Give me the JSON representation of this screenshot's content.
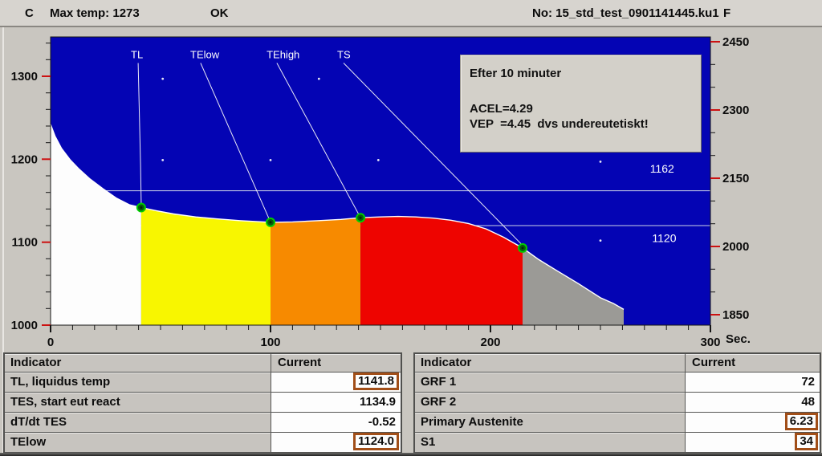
{
  "title_bar": {
    "unit_c": "C",
    "max_temp": "Max temp: 1273",
    "status": "OK",
    "file_no": "No: 15_std_test_0901141445.ku1",
    "unit_f": "F"
  },
  "info_box": {
    "line1": "Efter 10 minuter",
    "line2": "ACEL=4.29",
    "line3": "VEP  =4.45  dvs undereutetiskt!"
  },
  "chart_data": {
    "type": "area",
    "x_axis": {
      "unit": "Sec.",
      "min": 0,
      "max": 300,
      "major_ticks": [
        0,
        100,
        200,
        300
      ],
      "minor_step": 10
    },
    "y_left": {
      "unit": "C",
      "min": 1000,
      "max": 1340,
      "major_ticks": [
        1000,
        1100,
        1200,
        1300
      ],
      "minor_step": 20
    },
    "y_right": {
      "unit": "F",
      "min": 1850,
      "max": 2450,
      "major_ticks": [
        1850,
        2000,
        2150,
        2300,
        2450
      ],
      "minor_step": 50
    },
    "baseline": 1000,
    "curve": [
      [
        0,
        1242
      ],
      [
        2,
        1228
      ],
      [
        5,
        1213
      ],
      [
        9,
        1199
      ],
      [
        13,
        1188
      ],
      [
        18,
        1176
      ],
      [
        24,
        1164
      ],
      [
        30,
        1153
      ],
      [
        36,
        1145
      ],
      [
        41.2,
        1141.8
      ],
      [
        48,
        1138
      ],
      [
        56,
        1134
      ],
      [
        66,
        1130.5
      ],
      [
        76,
        1128
      ],
      [
        86,
        1126
      ],
      [
        100,
        1124
      ],
      [
        110,
        1124.5
      ],
      [
        122,
        1126
      ],
      [
        132,
        1127.5
      ],
      [
        140.9,
        1129.5
      ],
      [
        150,
        1130.5
      ],
      [
        158,
        1131
      ],
      [
        166,
        1130.5
      ],
      [
        174,
        1129
      ],
      [
        182,
        1126.5
      ],
      [
        190,
        1122.5
      ],
      [
        198,
        1116
      ],
      [
        206,
        1106
      ],
      [
        214.6,
        1093
      ],
      [
        222,
        1079
      ],
      [
        230,
        1066
      ],
      [
        240,
        1050
      ],
      [
        250,
        1033
      ],
      [
        256,
        1026
      ],
      [
        260.6,
        1019
      ]
    ],
    "regions": [
      {
        "name": "undercooled-liquid",
        "color": "#fdfdfd",
        "from": 0,
        "to": 41.2
      },
      {
        "name": "primary-solidification",
        "color": "#f8f600",
        "from": 41.2,
        "to": 100
      },
      {
        "name": "eutectic-early",
        "color": "#f78a00",
        "from": 100,
        "to": 140.9
      },
      {
        "name": "eutectic-main",
        "color": "#ee0400",
        "from": 140.9,
        "to": 214.6
      },
      {
        "name": "end-of-solidification",
        "color": "#9b9a96",
        "from": 214.6,
        "to": 260.6
      }
    ],
    "ref_lines": [
      {
        "value": 1162,
        "label": "1162",
        "label_t": 272.5,
        "label_T": 1184
      },
      {
        "value": 1120,
        "label": "1120",
        "label_t": 273.5,
        "label_T": 1100
      }
    ],
    "markers": [
      {
        "name": "TL",
        "label": "TL",
        "t": 41.2,
        "T": 1141.8,
        "label_t": 36.5,
        "label_T": 1322,
        "line": [
          [
            39.8,
            1316
          ],
          [
            40.9,
            1193
          ],
          [
            41.2,
            1147
          ]
        ]
      },
      {
        "name": "TElow",
        "label": "TElow",
        "t": 100,
        "T": 1124,
        "label_t": 63.5,
        "label_T": 1322,
        "line": [
          [
            68.2,
            1316
          ],
          [
            99.2,
            1129
          ]
        ]
      },
      {
        "name": "TEhigh",
        "label": "TEhigh",
        "t": 140.9,
        "T": 1129.5,
        "label_t": 98.2,
        "label_T": 1322,
        "line": [
          [
            102.9,
            1316
          ],
          [
            140,
            1134
          ]
        ]
      },
      {
        "name": "TS",
        "label": "TS",
        "t": 214.6,
        "T": 1093,
        "label_t": 130.3,
        "label_T": 1322,
        "line": [
          [
            133.2,
            1316
          ],
          [
            213.9,
            1098
          ]
        ]
      }
    ],
    "scatter_dots": [
      [
        51,
        1297
      ],
      [
        122,
        1297
      ],
      [
        188,
        1297
      ],
      [
        247,
        1297
      ],
      [
        51,
        1199
      ],
      [
        100,
        1199
      ],
      [
        149,
        1199
      ],
      [
        250,
        1197
      ],
      [
        250,
        1102
      ]
    ],
    "colors": {
      "plot_bg": "#0404b4",
      "curve": "#ffffff",
      "ref_line": "#ccd2e6",
      "indicator_line": "#e9e9f5",
      "marker_fill": "#085c0e",
      "marker_stroke": "#00cc00",
      "tick_major": "#cc1111",
      "tick_minor": "#151515",
      "axis_frame": "#151515",
      "chart_label": "#ffffff",
      "axis_text": "#0c0c0c"
    }
  },
  "tables": {
    "left": {
      "headers": [
        "Indicator",
        "Current"
      ],
      "rows": [
        {
          "label": "TL, liquidus temp",
          "value": "1141.8",
          "boxed": true
        },
        {
          "label": "TES, start eut react",
          "value": "1134.9",
          "boxed": false
        },
        {
          "label": "dT/dt TES",
          "value": "-0.52",
          "boxed": false
        },
        {
          "label": "TElow",
          "value": "1124.0",
          "boxed": true
        }
      ]
    },
    "right": {
      "headers": [
        "Indicator",
        "Current"
      ],
      "rows": [
        {
          "label": "GRF 1",
          "value": "72",
          "boxed": false
        },
        {
          "label": "GRF 2",
          "value": "48",
          "boxed": false
        },
        {
          "label": "Primary Austenite",
          "value": "6.23",
          "boxed": true
        },
        {
          "label": "S1",
          "value": "34",
          "boxed": true
        }
      ]
    }
  },
  "accent": {
    "highlight_box_color": "#a14e18"
  }
}
